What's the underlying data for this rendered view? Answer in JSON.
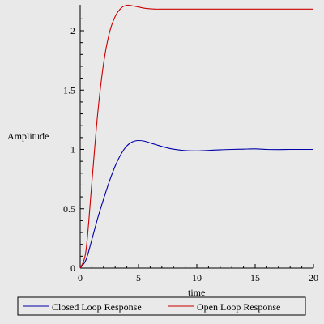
{
  "chart_data": {
    "type": "line",
    "title": "",
    "xlabel": "time",
    "ylabel": "Amplitude",
    "xlim": [
      0,
      20
    ],
    "ylim": [
      0,
      2.25
    ],
    "x_ticks": [
      0,
      5,
      10,
      15,
      20
    ],
    "y_ticks": [
      0,
      0.5,
      1,
      1.5,
      2
    ],
    "x_tick_labels": [
      "0",
      "5",
      "10",
      "15",
      "20"
    ],
    "y_tick_labels": [
      "0",
      "0.5",
      "1",
      "1.5",
      "2"
    ],
    "grid": false,
    "legend_position": "bottom",
    "series": [
      {
        "name": "Closed Loop Response",
        "color": "#0000aa",
        "x": [
          0,
          0.5,
          1,
          1.5,
          2,
          2.5,
          3,
          3.5,
          4,
          4.5,
          5,
          5.5,
          6,
          6.5,
          7,
          7.5,
          8,
          9,
          10,
          11,
          12,
          13,
          14,
          15,
          16,
          17,
          18,
          19,
          20
        ],
        "y": [
          0,
          0.07,
          0.24,
          0.42,
          0.58,
          0.73,
          0.86,
          0.96,
          1.03,
          1.065,
          1.075,
          1.07,
          1.055,
          1.04,
          1.025,
          1.012,
          1.002,
          0.99,
          0.988,
          0.992,
          0.997,
          1.0,
          1.002,
          1.005,
          1.0,
          0.999,
          1.0,
          1.0,
          1.0
        ]
      },
      {
        "name": "Open Loop Response",
        "color": "#cc0000",
        "x": [
          0,
          0.5,
          1,
          1.5,
          2,
          2.5,
          3,
          3.5,
          4,
          4.5,
          5,
          5.5,
          6,
          6.5,
          7,
          8,
          9,
          10,
          12,
          14,
          16,
          18,
          20
        ],
        "y": [
          0,
          0.15,
          0.72,
          1.3,
          1.72,
          1.98,
          2.12,
          2.19,
          2.215,
          2.21,
          2.2,
          2.19,
          2.185,
          2.182,
          2.182,
          2.182,
          2.182,
          2.182,
          2.182,
          2.182,
          2.182,
          2.182,
          2.182
        ]
      }
    ]
  }
}
